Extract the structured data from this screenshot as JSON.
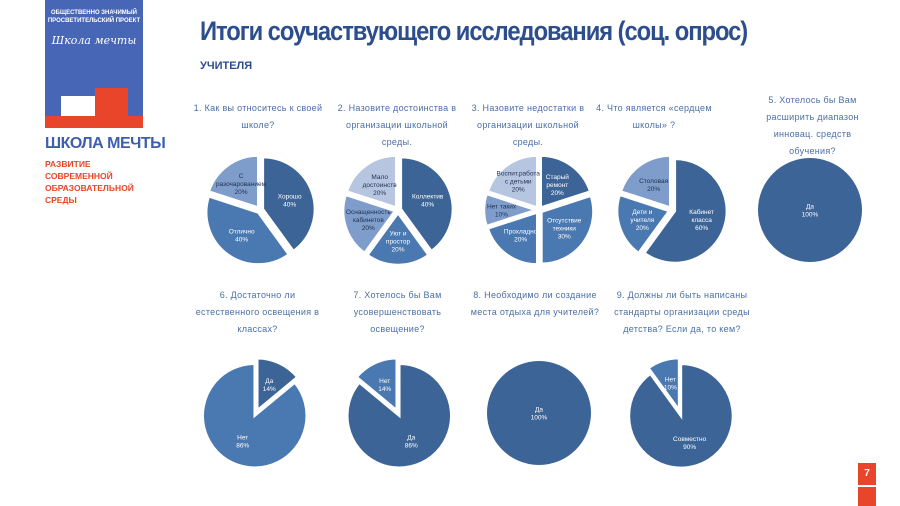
{
  "logo": {
    "top_text": "ОБЩЕСТВЕННО ЗНАЧИМЫЙ ПРОСВЕТИТЕЛЬСКИЙ ПРОЕКТ",
    "script_text": "Школа мечты",
    "brand": "ШКОЛА МЕЧТЫ",
    "brand_sub": "РАЗВИТИЕ СОВРЕМЕННОЙ ОБРАЗОВАТЕЛЬНОЙ СРЕДЫ"
  },
  "header": {
    "title": "Итоги соучаствующего исследования (соц. опрос)",
    "subtitle": "УЧИТЕЛЯ"
  },
  "page_number": "7",
  "colors": {
    "dark": "#3c6496",
    "mid": "#4a78b0",
    "light": "#7f9dca",
    "lighter": "#b7c6e0"
  },
  "chart_data": [
    {
      "type": "pie",
      "title": "1. Как вы относитесь к своей школе?",
      "slices": [
        {
          "label": "Хорошо",
          "value": 40,
          "pct": "40%",
          "color": "dark"
        },
        {
          "label": "Отлично",
          "value": 40,
          "pct": "40%",
          "color": "mid"
        },
        {
          "label": "С разочарованием",
          "value": 20,
          "pct": "20%",
          "color": "light"
        }
      ]
    },
    {
      "type": "pie",
      "title": "2. Назовите достоинства в организации школьной среды.",
      "slices": [
        {
          "label": "Коллектив",
          "value": 40,
          "pct": "40%",
          "color": "dark"
        },
        {
          "label": "Уют и простор",
          "value": 20,
          "pct": "20%",
          "color": "mid"
        },
        {
          "label": "Оснащенность кабинетов",
          "value": 20,
          "pct": "20%",
          "color": "light"
        },
        {
          "label": "Мало достоинств",
          "value": 20,
          "pct": "20%",
          "color": "lighter"
        }
      ]
    },
    {
      "type": "pie",
      "title": "3. Назовите недостатки в организации школьной среды.",
      "slices": [
        {
          "label": "Старый ремонт",
          "value": 20,
          "pct": "20%",
          "color": "dark"
        },
        {
          "label": "Отсутствие техники",
          "value": 30,
          "pct": "30%",
          "color": "mid"
        },
        {
          "label": "Прохладно",
          "value": 20,
          "pct": "20%",
          "color": "mid"
        },
        {
          "label": "Нет таких",
          "value": 10,
          "pct": "10%",
          "color": "light"
        },
        {
          "label": "Воспит.работа с детьми",
          "value": 20,
          "pct": "20%",
          "color": "lighter"
        }
      ]
    },
    {
      "type": "pie",
      "title": "4. Что является «сердцем школы» ?",
      "slices": [
        {
          "label": "Кабинет класса",
          "value": 60,
          "pct": "60%",
          "color": "dark"
        },
        {
          "label": "Дети и учителя",
          "value": 20,
          "pct": "20%",
          "color": "mid"
        },
        {
          "label": "Столовая",
          "value": 20,
          "pct": "20%",
          "color": "light"
        }
      ]
    },
    {
      "type": "pie",
      "title": "5. Хотелось бы Вам расширить диапазон инновац. средств обучения?",
      "slices": [
        {
          "label": "Да",
          "value": 100,
          "pct": "100%",
          "color": "dark"
        }
      ]
    },
    {
      "type": "pie",
      "title": "6. Достаточно ли естественного освещения в классах?",
      "slices": [
        {
          "label": "Да",
          "value": 14,
          "pct": "14%",
          "color": "dark"
        },
        {
          "label": "Нет",
          "value": 86,
          "pct": "86%",
          "color": "mid"
        }
      ]
    },
    {
      "type": "pie",
      "title": "7. Хотелось бы Вам усовершенствовать освещение?",
      "slices": [
        {
          "label": "",
          "value": 0,
          "pct": "0%",
          "color": "dark"
        },
        {
          "label": "Да",
          "value": 86,
          "pct": "86%",
          "color": "dark"
        },
        {
          "label": "Нет",
          "value": 14,
          "pct": "14%",
          "color": "mid"
        }
      ]
    },
    {
      "type": "pie",
      "title": "8. Необходимо ли создание места отдыха для учителей?",
      "slices": [
        {
          "label": "Да",
          "value": 100,
          "pct": "100%",
          "color": "dark"
        }
      ]
    },
    {
      "type": "pie",
      "title": "9. Должны ли быть написаны стандарты организации среды детства? Если да, то кем?",
      "slices": [
        {
          "label": "Совместно",
          "value": 90,
          "pct": "90%",
          "color": "dark"
        },
        {
          "label": "Нет",
          "value": 10,
          "pct": "10%",
          "color": "mid"
        }
      ]
    }
  ]
}
